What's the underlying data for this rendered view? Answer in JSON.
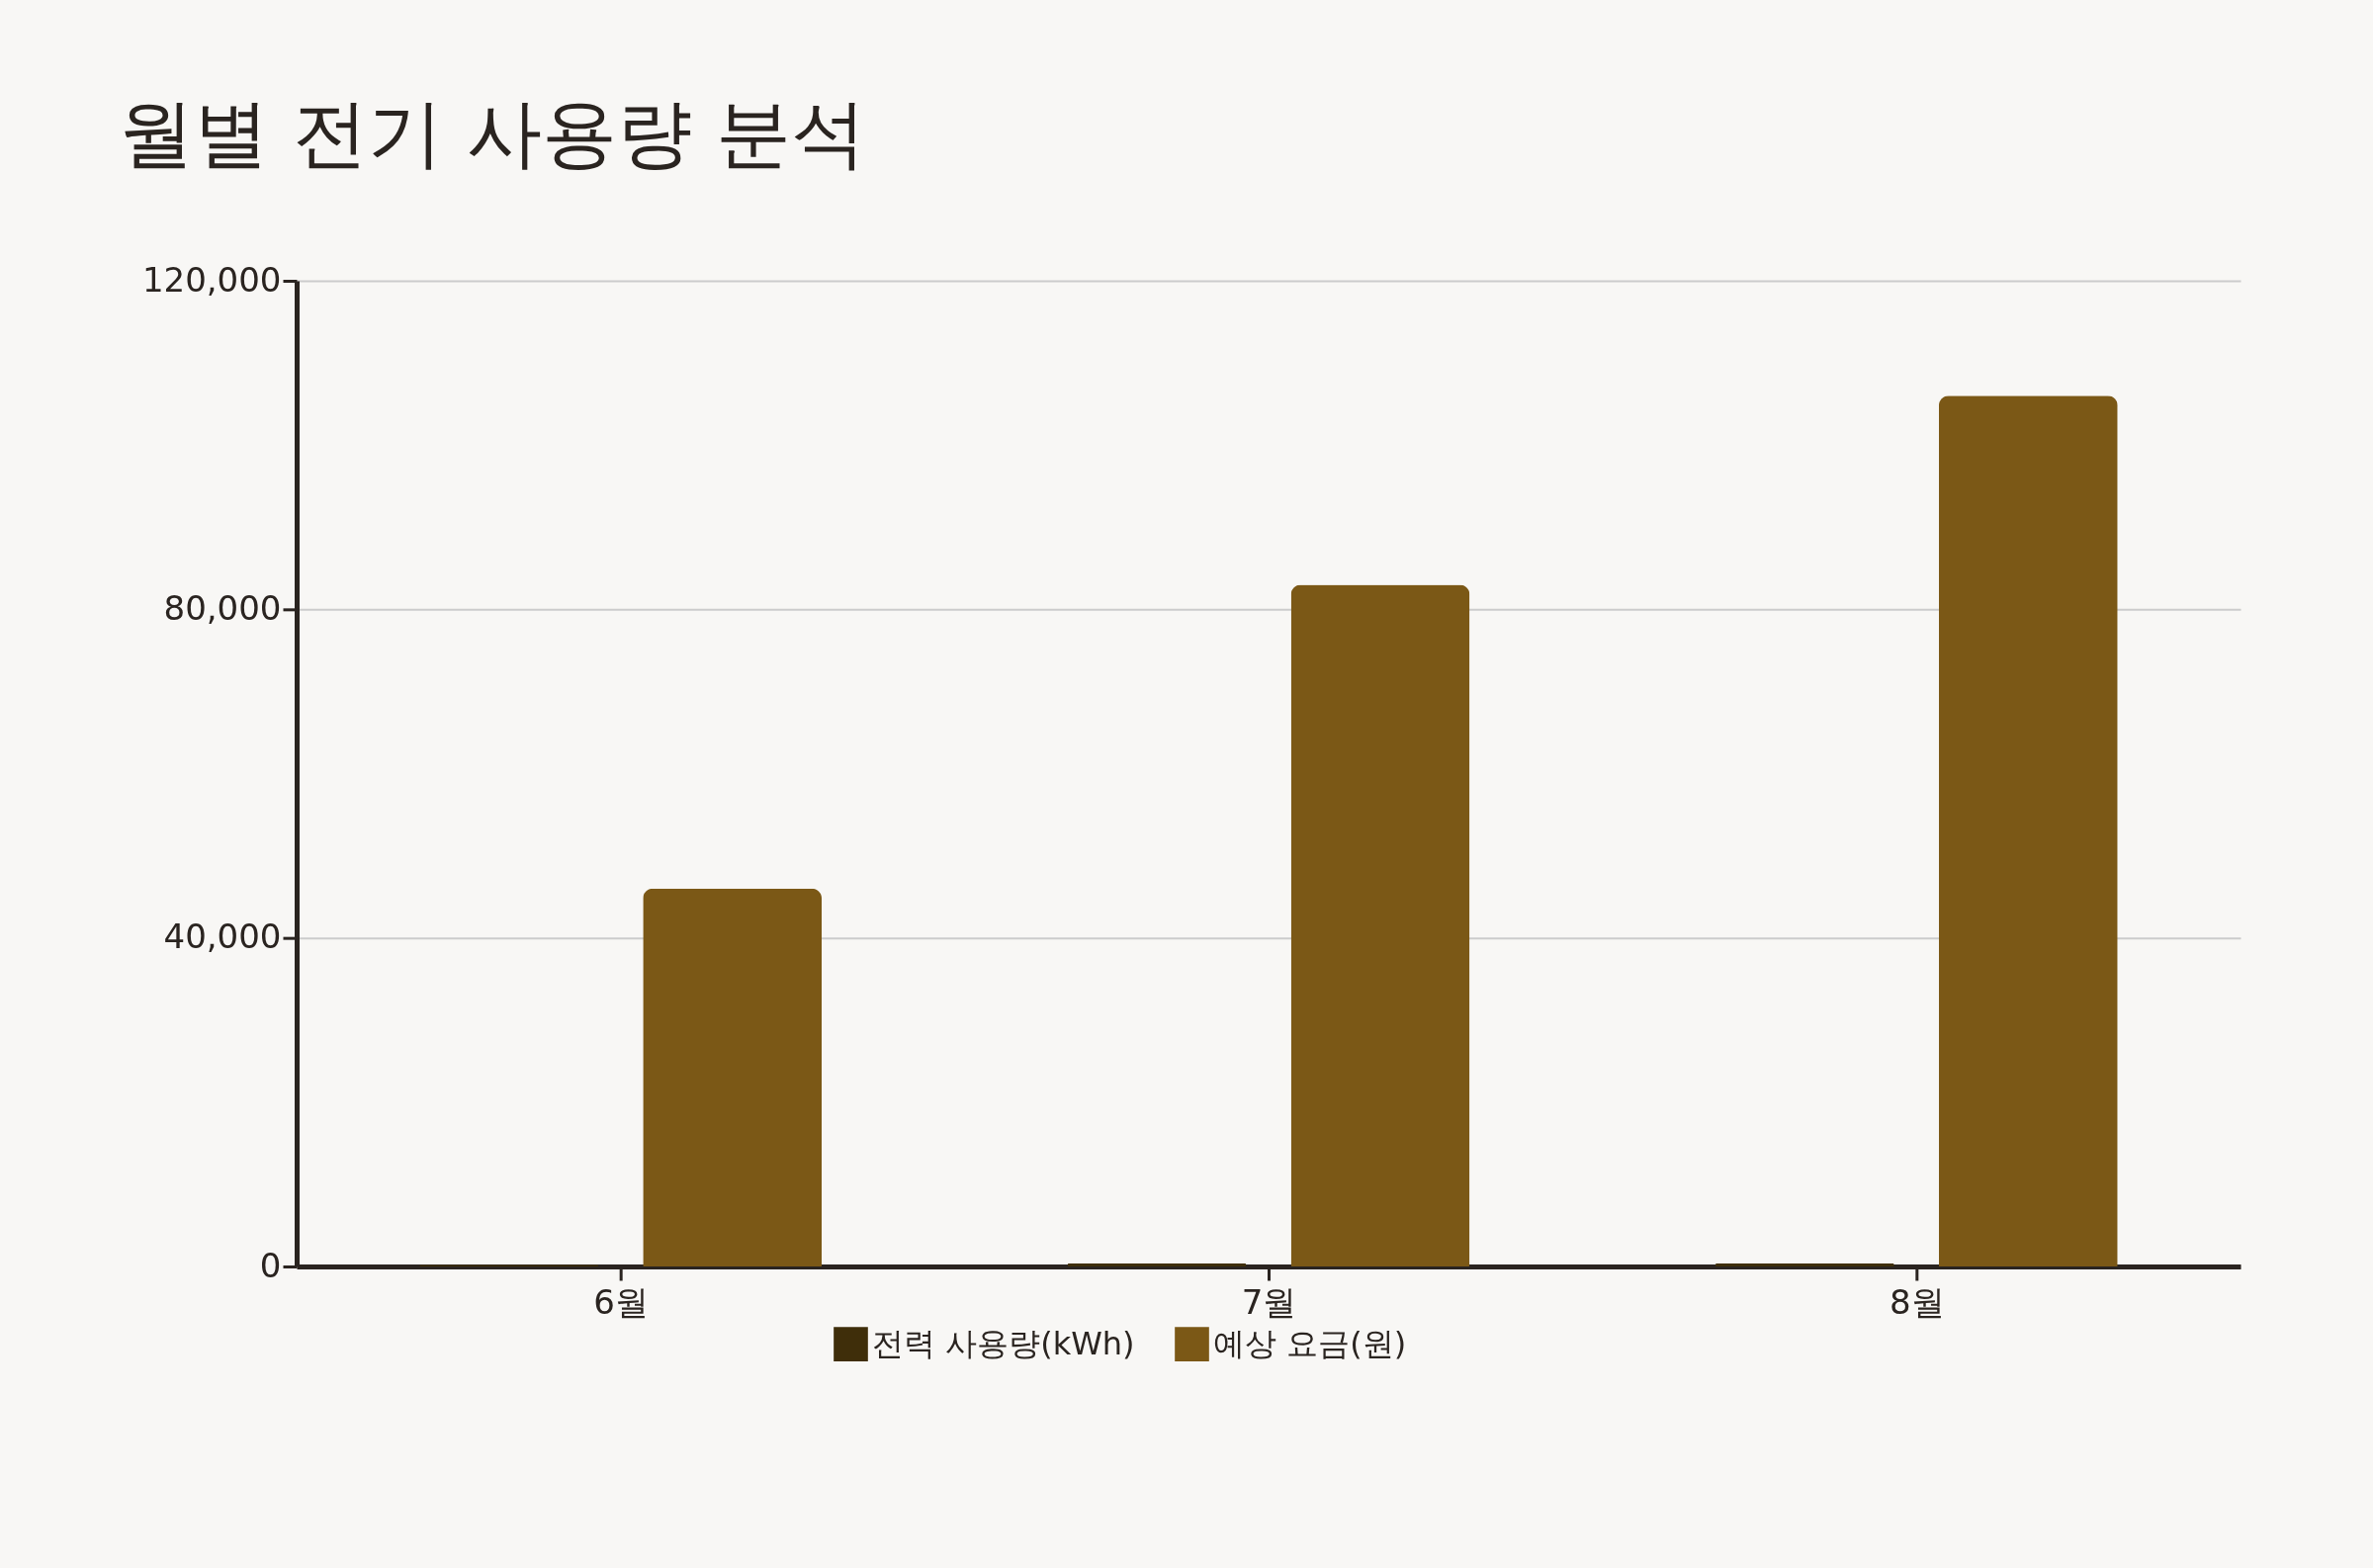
{
  "chart_data": {
    "type": "bar",
    "title": "월별 전기 사용량 분석",
    "categories": [
      "6월",
      "7월",
      "8월"
    ],
    "series": [
      {
        "name": "전력 사용량(kWh)",
        "color": "#3f2e0a",
        "values": [
          200,
          400,
          400
        ]
      },
      {
        "name": "예상 요금(원)",
        "color": "#7b5816",
        "values": [
          46000,
          83000,
          106000
        ]
      }
    ],
    "ylim": [
      0,
      120000
    ],
    "yticks": [
      {
        "value": 0,
        "label": "0"
      },
      {
        "value": 40000,
        "label": "40,000"
      },
      {
        "value": 80000,
        "label": "80,000"
      },
      {
        "value": 120000,
        "label": "120,000"
      }
    ],
    "grid": "y",
    "legend": "bottom"
  }
}
